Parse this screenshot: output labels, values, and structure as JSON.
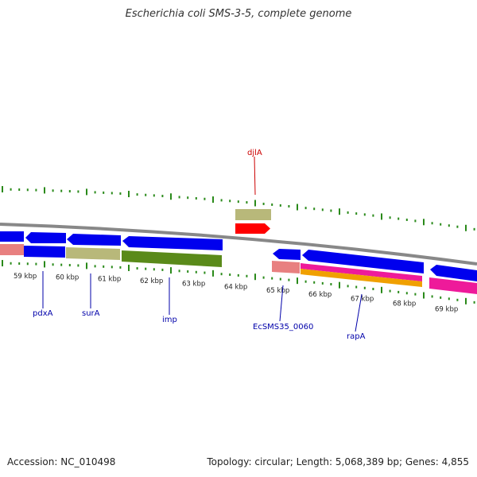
{
  "title": "Escherichia coli SMS-3-5, complete genome",
  "footer": {
    "accession": "Accession: NC_010498",
    "stats": "Topology: circular; Length: 5,068,389 bp; Genes: 4,855"
  },
  "colors": {
    "cds_blue": "#0000ee",
    "gene_tan": "#b8b87a",
    "gene_green": "#5a8a1a",
    "gene_salmon": "#e88080",
    "gene_magenta": "#ee1a9a",
    "gene_orange": "#f0a000",
    "highlight_red": "#ff0000",
    "tick_green": "#2a8a1a",
    "backbone": "#888888",
    "label_blue": "#0000aa",
    "label_red": "#cc0000"
  },
  "axis": {
    "ticks": [
      "59 kbp",
      "60 kbp",
      "61 kbp",
      "62 kbp",
      "63 kbp",
      "64 kbp",
      "65 kbp",
      "66 kbp",
      "67 kbp",
      "68 kbp",
      "69 kbp"
    ]
  },
  "gene_labels": [
    {
      "name": "pdxA",
      "color": "blue"
    },
    {
      "name": "surA",
      "color": "blue"
    },
    {
      "name": "imp",
      "color": "blue"
    },
    {
      "name": "EcSMS35_0060",
      "color": "blue"
    },
    {
      "name": "rapA",
      "color": "blue"
    },
    {
      "name": "djlA",
      "color": "red"
    }
  ]
}
